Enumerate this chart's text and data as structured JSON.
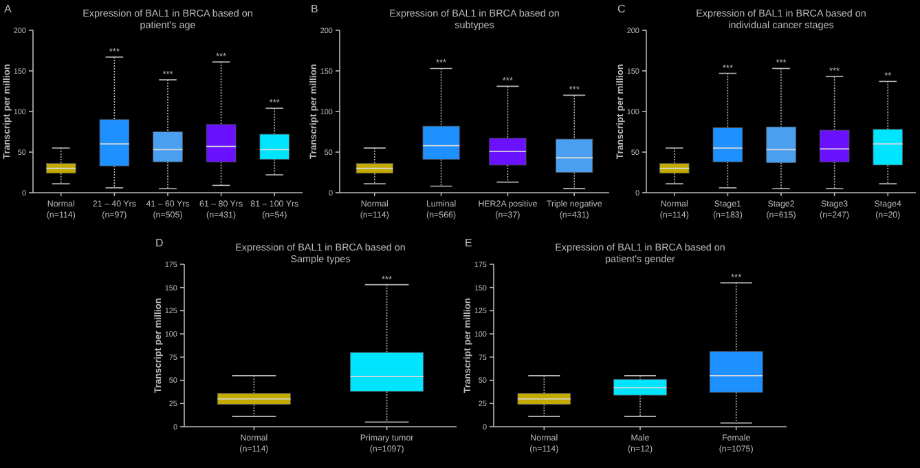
{
  "chart_data": [
    {
      "type": "box",
      "title": "Expression of BAL1 in BRCA based on\npatient's age",
      "ylabel": "Transcript per million",
      "categories": [
        "Normal\n(n=114)",
        "21 – 40 Yrs\n(n=97)",
        "41 – 60 Yrs\n(n=505)",
        "61 – 80 Yrs\n(n=431)",
        "81 – 100 Yrs\n(n=54)"
      ],
      "colors": [
        "#c2aa00",
        "#1e90ff",
        "#4a9ff0",
        "#6a11ff",
        "#00e5ff"
      ],
      "boxes": [
        {
          "low": 11,
          "q1": 24,
          "median": 30,
          "q3": 36,
          "high": 55
        },
        {
          "low": 6,
          "q1": 33,
          "median": 60,
          "q3": 90,
          "high": 167
        },
        {
          "low": 5,
          "q1": 38,
          "median": 53,
          "q3": 75,
          "high": 139
        },
        {
          "low": 9,
          "q1": 38,
          "median": 57,
          "q3": 84,
          "high": 161
        },
        {
          "low": 22,
          "q1": 41,
          "median": 53,
          "q3": 72,
          "high": 104
        }
      ],
      "ylim": [
        0,
        200
      ],
      "yticks": [
        0,
        50,
        100,
        150,
        200
      ],
      "annotations": [
        "A",
        {
          "text": "***",
          "x": "21 – 40 Yrs\n(n=97)",
          "y": 167
        },
        {
          "text": "***",
          "x": "41 – 60 Yrs\n(n=505)",
          "y": 139
        },
        {
          "text": "***",
          "x": "61 – 80 Yrs\n(n=431)",
          "y": 161
        },
        {
          "text": "***",
          "x": "81 – 100 Yrs\n(n=54)",
          "y": 104
        }
      ]
    },
    {
      "type": "box",
      "title": "Expression of BAL1 in BRCA based on\nsubtypes",
      "ylabel": "Transcript per million",
      "categories": [
        "Normal\n(n=114)",
        "Luminal\n(n=566)",
        "HER2A positive\n(n=37)",
        "Triple negative\n(n=431)"
      ],
      "colors": [
        "#c2aa00",
        "#1e90ff",
        "#6a11ff",
        "#4a9ff0"
      ],
      "boxes": [
        {
          "low": 11,
          "q1": 24,
          "median": 30,
          "q3": 36,
          "high": 55
        },
        {
          "low": 8,
          "q1": 41,
          "median": 58,
          "q3": 82,
          "high": 153
        },
        {
          "low": 13,
          "q1": 34,
          "median": 51,
          "q3": 67,
          "high": 131
        },
        {
          "low": 5,
          "q1": 25,
          "median": 43,
          "q3": 66,
          "high": 120
        }
      ],
      "ylim": [
        0,
        200
      ],
      "yticks": [
        0,
        50,
        100,
        150,
        200
      ],
      "annotations": [
        "B",
        {
          "text": "***",
          "x": "Luminal\n(n=566)",
          "y": 153
        },
        {
          "text": "***",
          "x": "HER2A positive\n(n=37)",
          "y": 131
        },
        {
          "text": "***",
          "x": "Triple negative\n(n=431)",
          "y": 120
        }
      ]
    },
    {
      "type": "box",
      "title": "Expression of BAL1 in BRCA based on\nindividual cancer stages",
      "ylabel": "Transcript per million",
      "categories": [
        "Normal\n(n=114)",
        "Stage1\n(n=183)",
        "Stage2\n(n=615)",
        "Stage3\n(n=247)",
        "Stage4\n(n=20)"
      ],
      "colors": [
        "#c2aa00",
        "#1e90ff",
        "#4a9ff0",
        "#6a11ff",
        "#00e5ff"
      ],
      "boxes": [
        {
          "low": 11,
          "q1": 24,
          "median": 30,
          "q3": 36,
          "high": 55
        },
        {
          "low": 6,
          "q1": 38,
          "median": 55,
          "q3": 80,
          "high": 147
        },
        {
          "low": 5,
          "q1": 37,
          "median": 53,
          "q3": 81,
          "high": 153
        },
        {
          "low": 5,
          "q1": 38,
          "median": 54,
          "q3": 77,
          "high": 143
        },
        {
          "low": 11,
          "q1": 34,
          "median": 60,
          "q3": 78,
          "high": 137
        }
      ],
      "ylim": [
        0,
        200
      ],
      "yticks": [
        0,
        50,
        100,
        150,
        200
      ],
      "annotations": [
        "C",
        {
          "text": "***",
          "x": "Stage1\n(n=183)",
          "y": 147
        },
        {
          "text": "***",
          "x": "Stage2\n(n=615)",
          "y": 153
        },
        {
          "text": "***",
          "x": "Stage3\n(n=247)",
          "y": 143
        },
        {
          "text": "**",
          "x": "Stage4\n(n=20)",
          "y": 137
        }
      ]
    },
    {
      "type": "box",
      "title": "Expression of BAL1 in BRCA based on\nSample types",
      "ylabel": "Transcript per million",
      "categories": [
        "Normal\n(n=114)",
        "Primary tumor\n(n=1097)"
      ],
      "colors": [
        "#c2aa00",
        "#00e5ff"
      ],
      "boxes": [
        {
          "low": 11,
          "q1": 24,
          "median": 30,
          "q3": 36,
          "high": 55
        },
        {
          "low": 5,
          "q1": 38,
          "median": 54,
          "q3": 80,
          "high": 153
        }
      ],
      "ylim": [
        0,
        175
      ],
      "yticks": [
        0,
        25,
        50,
        75,
        100,
        125,
        150,
        175
      ],
      "annotations": [
        "D",
        {
          "text": "***",
          "x": "Primary tumor\n(n=1097)",
          "y": 153
        }
      ]
    },
    {
      "type": "box",
      "title": "Expression of BAL1 in BRCA based on\npatient's gender",
      "ylabel": "Transcript per million",
      "categories": [
        "Normal\n(n=114)",
        "Male\n(n=12)",
        "Female\n(n=1075)"
      ],
      "colors": [
        "#c2aa00",
        "#00e5ff",
        "#1e90ff"
      ],
      "boxes": [
        {
          "low": 11,
          "q1": 24,
          "median": 30,
          "q3": 36,
          "high": 55
        },
        {
          "low": 11,
          "q1": 34,
          "median": 42,
          "q3": 51,
          "high": 55
        },
        {
          "low": 4,
          "q1": 37,
          "median": 55,
          "q3": 81,
          "high": 155
        }
      ],
      "ylim": [
        0,
        175
      ],
      "yticks": [
        0,
        25,
        50,
        75,
        100,
        125,
        150,
        175
      ],
      "annotations": [
        "E",
        {
          "text": "***",
          "x": "Female\n(n=1075)",
          "y": 155
        }
      ]
    }
  ]
}
